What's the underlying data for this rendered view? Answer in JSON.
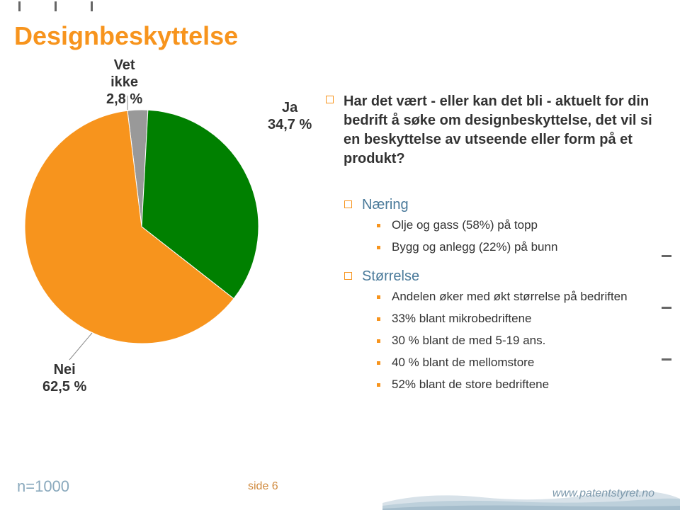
{
  "title": "Designbeskyttelse",
  "pie": {
    "type": "pie",
    "background_color": "#ffffff",
    "slices": [
      {
        "key": "nei",
        "label_line1": "Nei",
        "label_line2": "62,5 %",
        "value": 62.5,
        "color": "#f7941d"
      },
      {
        "key": "ja",
        "label_line1": "Ja",
        "label_line2": "34,7 %",
        "value": 34.7,
        "color": "#008000"
      },
      {
        "key": "vetikke",
        "label_line1": "Vet",
        "label_line2": "ikke",
        "label_line3": "2,8 %",
        "value": 2.8,
        "color": "#999999"
      }
    ],
    "label_fontsize": 20,
    "label_color": "#333333"
  },
  "question": "Har det vært - eller kan det bli - aktuelt for din bedrift å søke om designbeskyttelse, det vil si en beskyttelse av utseende eller form på et produkt?",
  "sections": [
    {
      "heading": "Næring",
      "items": [
        "Olje og gass (58%) på topp",
        "Bygg og anlegg (22%) på bunn"
      ]
    },
    {
      "heading": "Størrelse",
      "items": [
        "Andelen øker med økt størrelse på bedriften",
        "33% blant mikrobedriftene",
        "30 % blant de med 5-19 ans.",
        "40 % blant de mellomstore",
        "52% blant de store bedriftene"
      ]
    }
  ],
  "footer": {
    "n": "n=1000",
    "page": "side 6",
    "url": "www.patentstyret.no"
  },
  "colors": {
    "accent": "#f7941d",
    "subhead": "#4a7a9a",
    "text": "#333333",
    "muted": "#8aa9bd"
  }
}
